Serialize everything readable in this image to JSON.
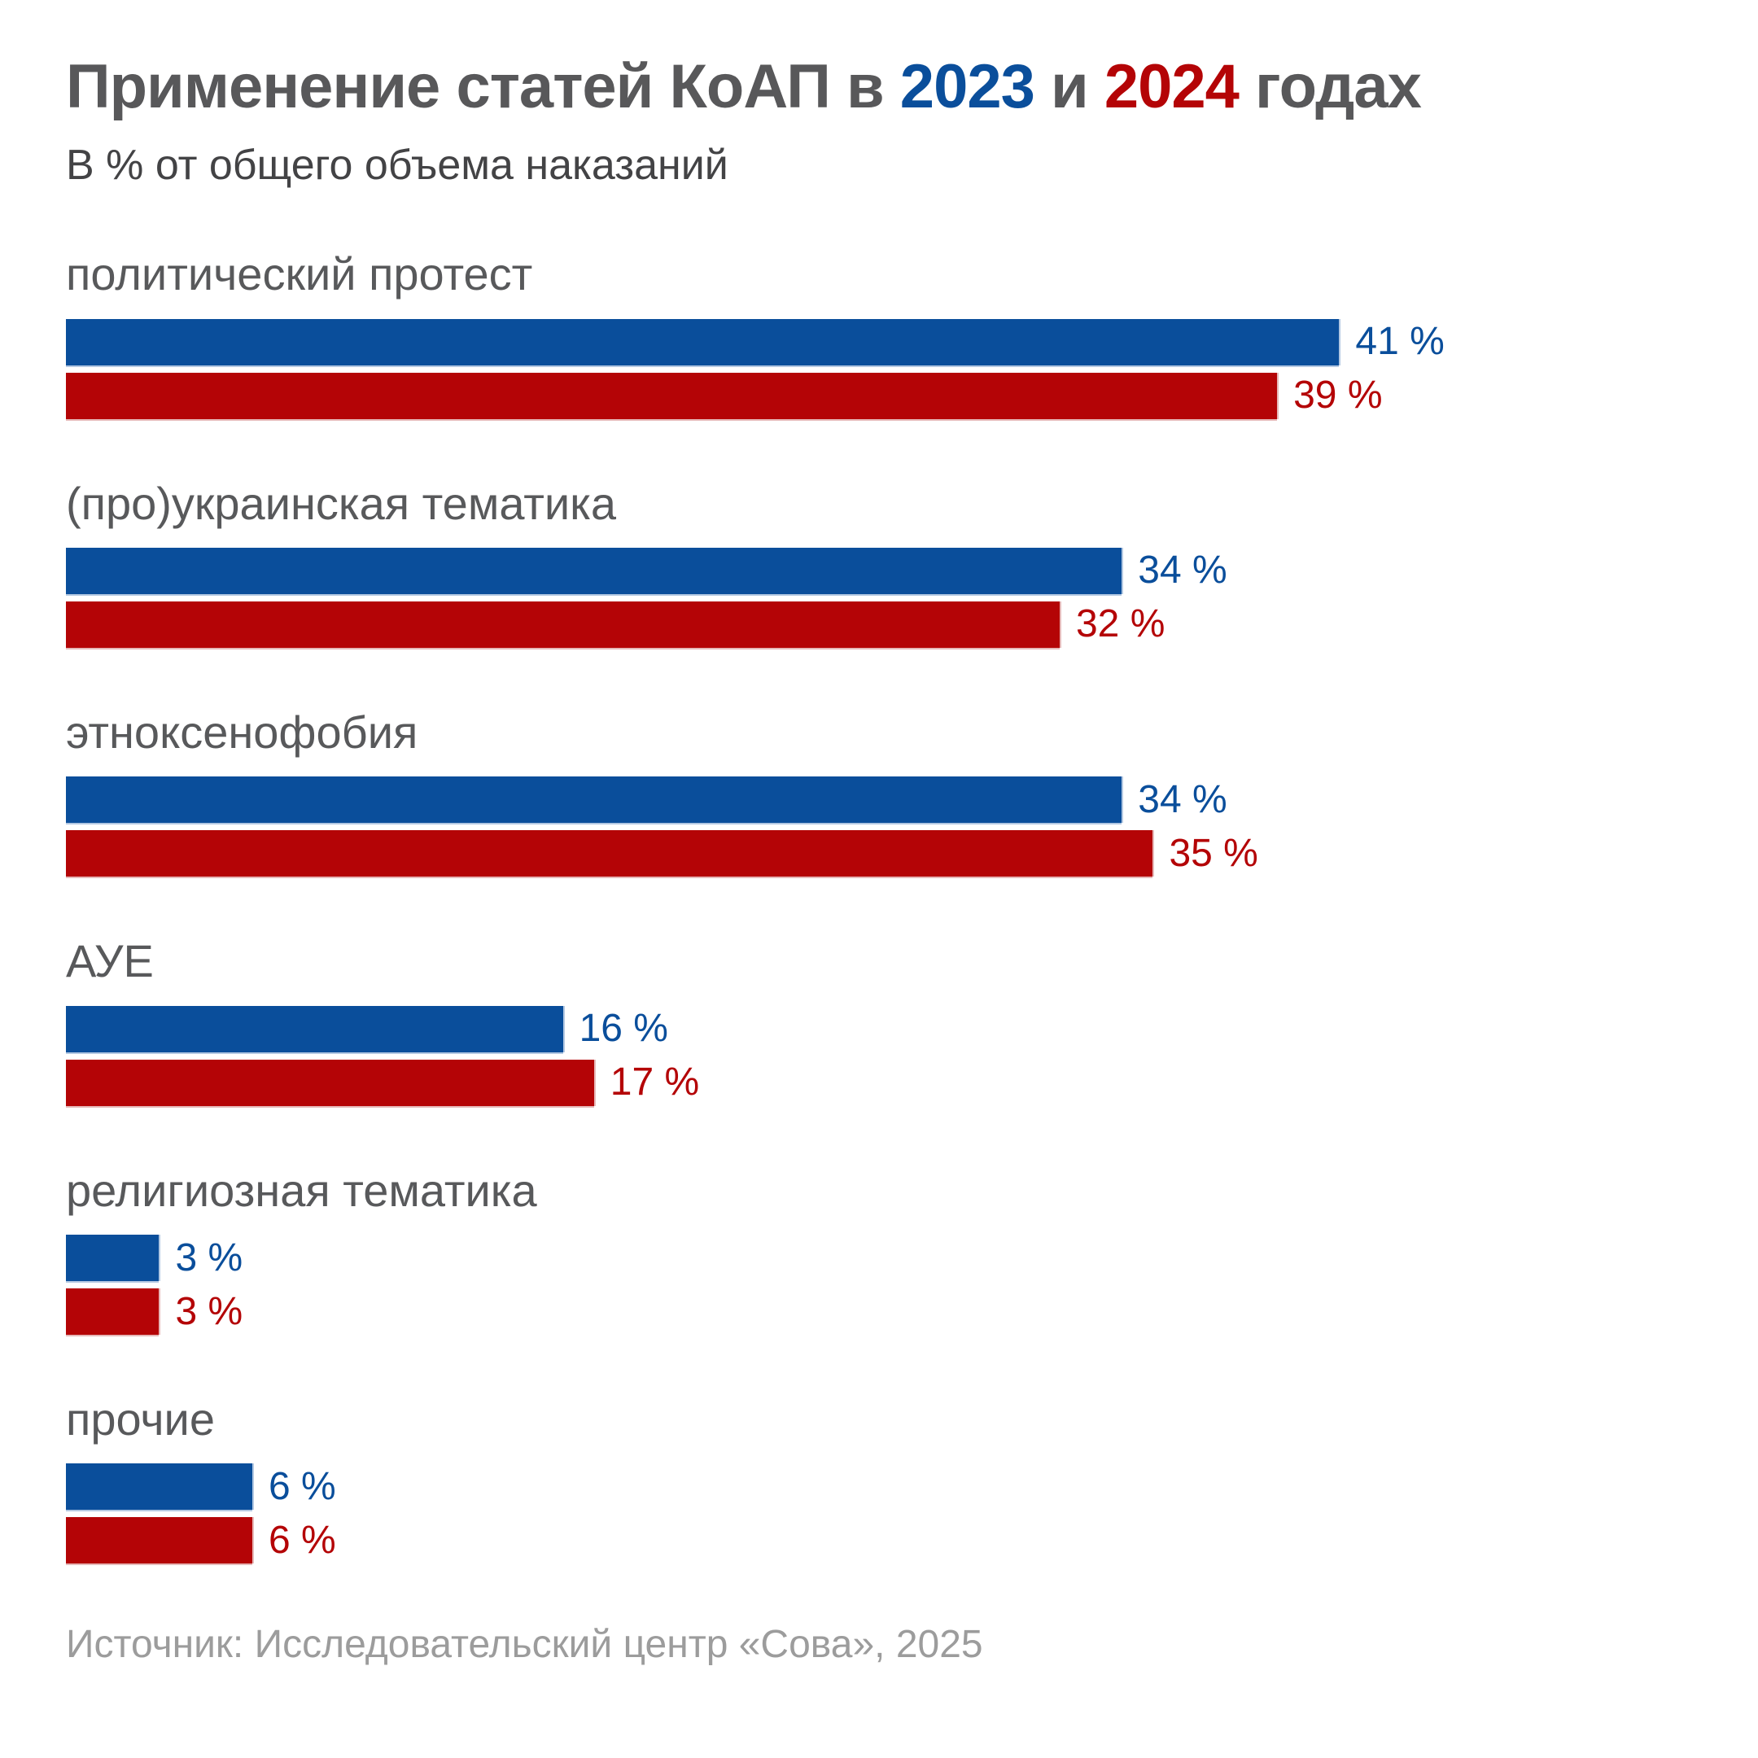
{
  "title": {
    "prefix": "Применение статей КоАП в ",
    "year1": "2023",
    "conjunction": " и ",
    "year2": "2024",
    "suffix": " годах"
  },
  "subtitle": "В % от общего объема наказаний",
  "source": "Источник: Исследовательский центр «Сова», 2025",
  "colors": {
    "title_text": "#58585a",
    "year1_accent": "#0a4e9b",
    "year2_accent": "#b40406",
    "bar_2023": "#0a4e9b",
    "bar_2024": "#b40406",
    "bar_2023_edge": "#b3c8e2",
    "bar_2024_edge": "#e6b9b9",
    "category_text": "#58595b",
    "source_text": "#9c9c9c"
  },
  "chart_data": {
    "type": "bar",
    "orientation": "horizontal",
    "unit": "%",
    "title": "Применение статей КоАП в 2023 и 2024 годах",
    "subtitle": "В % от общего объема наказаний",
    "categories": [
      "политический протест",
      "(про)украинская тематика",
      "этноксенофобия",
      "АУЕ",
      "религиозная тематика",
      "прочие"
    ],
    "series": [
      {
        "name": "2023",
        "color": "#0a4e9b",
        "values": [
          41,
          34,
          34,
          16,
          3,
          6
        ]
      },
      {
        "name": "2024",
        "color": "#b40406",
        "values": [
          39,
          32,
          35,
          17,
          3,
          6
        ]
      }
    ],
    "value_label_format": "{v} %",
    "xlim": [
      0,
      41
    ],
    "max_bar_width_pct": 78.3,
    "grid": false,
    "legend": "inline-in-title"
  }
}
